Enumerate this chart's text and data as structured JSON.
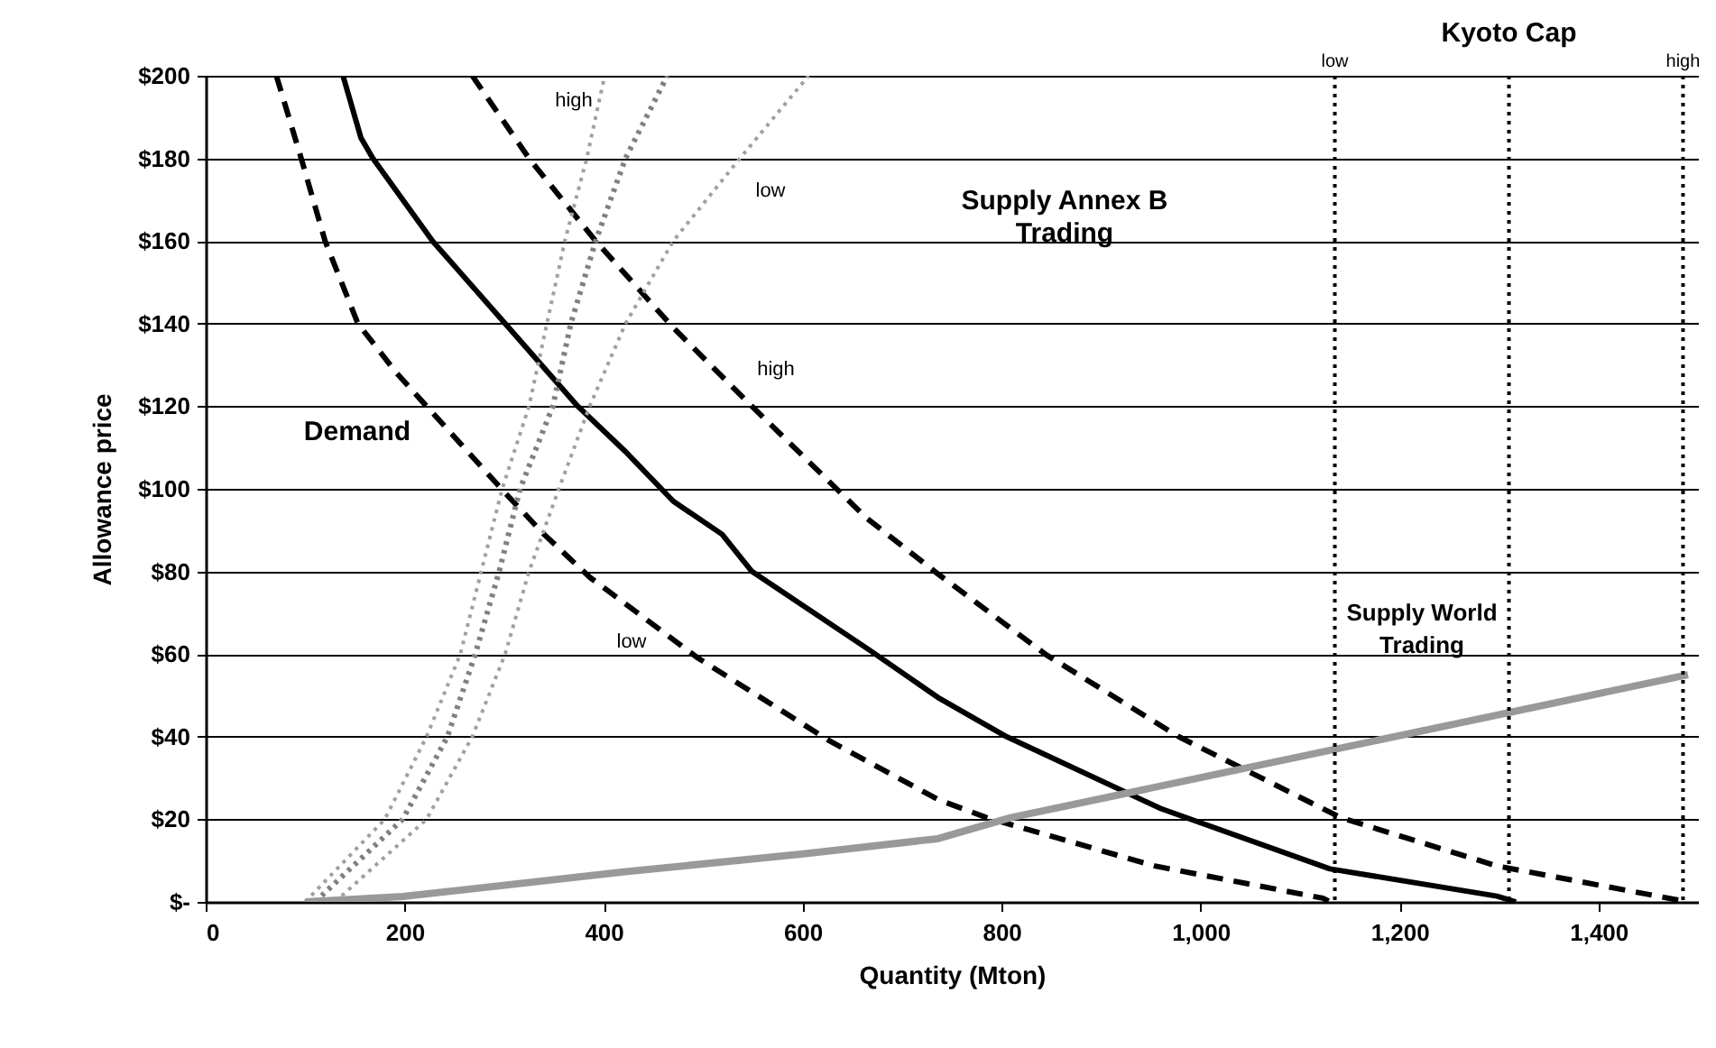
{
  "chart_data": {
    "type": "line",
    "xlabel": "Quantity (Mton)",
    "ylabel": "Allowance price",
    "xlim": [
      0,
      1500
    ],
    "ylim": [
      0,
      200
    ],
    "xticks": [
      0,
      200,
      400,
      600,
      800,
      {
        "value": 1000,
        "label": "1,000"
      },
      {
        "value": 1200,
        "label": "1,200"
      },
      {
        "value": 1400,
        "label": "1,400"
      }
    ],
    "yticks": [
      {
        "value": 0,
        "label": "$-"
      },
      {
        "value": 20,
        "label": "$20"
      },
      {
        "value": 40,
        "label": "$40"
      },
      {
        "value": 60,
        "label": "$60"
      },
      {
        "value": 80,
        "label": "$80"
      },
      {
        "value": 100,
        "label": "$100"
      },
      {
        "value": 120,
        "label": "$120"
      },
      {
        "value": 140,
        "label": "$140"
      },
      {
        "value": 160,
        "label": "$160"
      },
      {
        "value": 180,
        "label": "$180"
      },
      {
        "value": 200,
        "label": "$200"
      }
    ],
    "grid": "y",
    "marker": "none",
    "series": [
      {
        "color": "#000000",
        "line_style": "solid",
        "x": [
          138,
          156,
          168,
          228,
          301,
          374,
          422,
          470,
          519,
          549,
          667,
          736,
          805,
          960,
          1130,
          1298,
          1317
        ],
        "values": [
          200,
          185,
          180,
          160,
          140,
          120,
          109,
          97,
          89,
          80,
          61,
          49.5,
          40,
          22.6,
          8,
          1.4,
          0
        ]
      },
      {
        "color": "#000000",
        "line_style": "dashed",
        "x": [
          71,
          96,
          120,
          153,
          192,
          222,
          301,
          340,
          386,
          495,
          627,
          736,
          785,
          954,
          1123,
          1130
        ],
        "values": [
          200,
          180,
          160,
          140,
          128,
          120,
          99,
          89,
          78.6,
          59,
          39,
          24.8,
          20.4,
          8.7,
          0.9,
          0
        ]
      },
      {
        "color": "#000000",
        "line_style": "dashed",
        "x": [
          268,
          325,
          392,
          470,
          549,
          664,
          736,
          845,
          978,
          1141,
          1298,
          1490
        ],
        "values": [
          200,
          180,
          160,
          139,
          120,
          93,
          79.4,
          59.8,
          40,
          20.4,
          8.7,
          0
        ]
      },
      {
        "color": "#a0a0a0",
        "line_style": "dotted",
        "x": [
          100,
          180,
          222,
          256,
          277,
          298,
          325,
          343,
          361,
          383,
          401
        ],
        "values": [
          0,
          20,
          40,
          60,
          80,
          100,
          120,
          140,
          160,
          180,
          200
        ]
      },
      {
        "color": "#808080",
        "line_style": "dotted",
        "x": [
          110,
          198,
          243,
          271,
          295,
          316,
          349,
          367,
          392,
          422,
          464
        ],
        "values": [
          0,
          20,
          40,
          60,
          80,
          100,
          120,
          140,
          160,
          180,
          200
        ]
      },
      {
        "color": "#a0a0a0",
        "line_style": "dotted",
        "x": [
          130,
          222,
          268,
          301,
          325,
          355,
          386,
          422,
          470,
          537,
          606
        ],
        "values": [
          0,
          20,
          40,
          60,
          80,
          100,
          120,
          140,
          160,
          180,
          200
        ]
      },
      {
        "color": "#999999",
        "line_style": "solid",
        "x": [
          100,
          198,
          422,
          603,
          736,
          809,
          1026,
          1268,
          1490
        ],
        "values": [
          0,
          1.3,
          7.3,
          11.7,
          15.3,
          20.4,
          31.4,
          43.7,
          55
        ]
      }
    ],
    "ref_lines": [
      {
        "axis": "x",
        "value": 1135,
        "label": "low",
        "line_style": "dotted",
        "color": "#000000"
      },
      {
        "axis": "x",
        "value": 1310,
        "label": "Kyoto Cap",
        "line_style": "dotted",
        "color": "#000000"
      },
      {
        "axis": "x",
        "value": 1485,
        "label": "high",
        "line_style": "dotted",
        "color": "#000000"
      }
    ],
    "annotations": [
      "high",
      "low",
      "high",
      "low",
      "Demand",
      "Supply Annex B Trading",
      "Supply World Trading"
    ]
  }
}
